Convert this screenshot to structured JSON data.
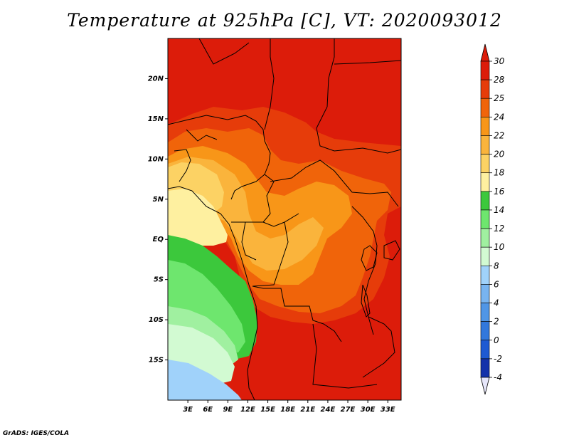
{
  "title": "Temperature at 925hPa [C], VT: 2020093012",
  "credit": "GrADS: IGES/COLA",
  "axes": {
    "lat_labels": [
      "20N",
      "15N",
      "10N",
      "5N",
      "EQ",
      "5S",
      "10S",
      "15S"
    ],
    "lat_values": [
      20,
      15,
      10,
      5,
      0,
      -5,
      -10,
      -15
    ],
    "lon_labels": [
      "3E",
      "6E",
      "9E",
      "12E",
      "15E",
      "18E",
      "21E",
      "24E",
      "27E",
      "30E",
      "33E"
    ],
    "lon_values": [
      3,
      6,
      9,
      12,
      15,
      18,
      21,
      24,
      27,
      30,
      33
    ],
    "lon_range": [
      0,
      35
    ],
    "lat_range": [
      -20,
      25
    ]
  },
  "colorbar": {
    "labels": [
      "30",
      "28",
      "25",
      "24",
      "22",
      "20",
      "18",
      "16",
      "14",
      "12",
      "10",
      "8",
      "6",
      "4",
      "2",
      "0",
      "-2",
      "-4"
    ],
    "colors": [
      "#dc1c0a",
      "#e63c0a",
      "#f0640a",
      "#f89618",
      "#fab43c",
      "#fcd264",
      "#fef0a0",
      "#3cc83c",
      "#6ee66e",
      "#a0f0a0",
      "#d2fad2",
      "#a0d2fa",
      "#78b4f0",
      "#5096e6",
      "#3278dc",
      "#1e5ad2",
      "#1432aa",
      "#0a1478"
    ],
    "top_color": "#dc1c0a",
    "bottom_color": "#e6e6fa"
  },
  "field_colors": {
    "hot": "#dc1c0a",
    "warm": "#e63c0a",
    "orange": "#f0640a",
    "amber": "#f89618",
    "light_orange": "#fab43c",
    "yellow": "#fcd264",
    "pale": "#fef0a0",
    "green_dark": "#3cc83c",
    "green": "#6ee66e",
    "green_light": "#a0f0a0",
    "mint": "#d2fad2",
    "sky": "#a0d2fa"
  }
}
